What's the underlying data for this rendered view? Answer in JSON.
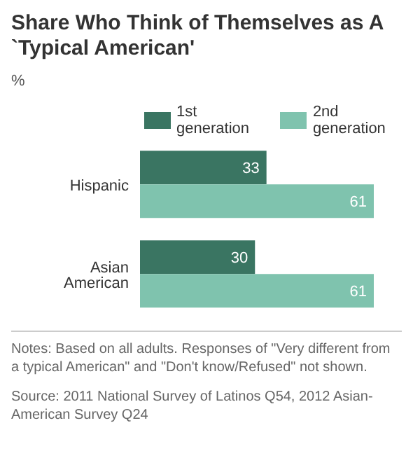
{
  "chart_data": {
    "type": "bar",
    "orientation": "horizontal",
    "title": "Share Who Think of Themselves as A `Typical American'",
    "subtitle": "%",
    "categories": [
      "Hispanic",
      "Asian American"
    ],
    "series": [
      {
        "name": "1st generation",
        "color": "#3a7562",
        "values": [
          33,
          30
        ]
      },
      {
        "name": "2nd generation",
        "color": "#7fc3ae",
        "values": [
          61,
          61
        ]
      }
    ],
    "data_labels": true,
    "legend": "top",
    "grid": false,
    "tick_labels": "y",
    "annotations": [
      "Notes: Based on all adults. Responses of \"Very different from a typical American\" and \"Don't know/Refused\" not shown.",
      "Source: 2011 National Survey of Latinos Q54, 2012 Asian-American Survey Q24"
    ]
  }
}
